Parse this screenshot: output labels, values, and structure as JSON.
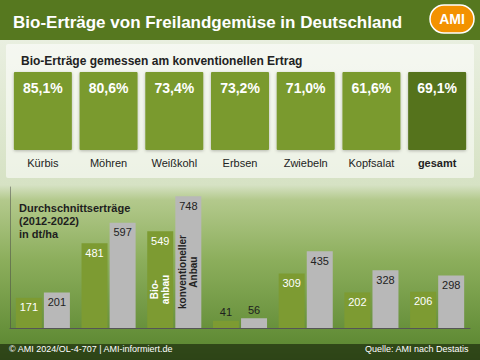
{
  "title": "Bio-Erträge von Freilandgemüse in Deutschland",
  "logo": "AMI",
  "chart_data": [
    {
      "type": "tiles",
      "title": "Bio-Erträge gemessen am konventionellen Ertrag",
      "categories": [
        "Kürbis",
        "Möhren",
        "Weißkohl",
        "Erbsen",
        "Zwiebeln",
        "Kopfsalat",
        "gesamt"
      ],
      "values": [
        85.1,
        80.6,
        73.4,
        73.2,
        71.0,
        61.6,
        69.1
      ],
      "value_labels": [
        "85,1%",
        "80,6%",
        "73,4%",
        "73,2%",
        "71,0%",
        "61,6%",
        "69,1%"
      ],
      "colors": [
        "#7a9a2e",
        "#7a9a2e",
        "#7a9a2e",
        "#7a9a2e",
        "#7a9a2e",
        "#7a9a2e",
        "#55731c"
      ],
      "data_labels": true
    },
    {
      "type": "bar",
      "title": "Durchschnittserträge\n(2012-2022)\nin dt/ha",
      "categories": [
        "Kürbis",
        "Möhren",
        "Weißkohl",
        "Erbsen",
        "Zwiebeln",
        "Kopfsalat",
        "gesamt"
      ],
      "series": [
        {
          "name": "Bio-\nanbau",
          "color": "#7d9b32",
          "values": [
            171,
            481,
            549,
            41,
            309,
            202,
            206
          ]
        },
        {
          "name": "konventioneller\nAnbau",
          "color": "#b8b8b8",
          "values": [
            201,
            597,
            748,
            56,
            435,
            328,
            298
          ]
        }
      ],
      "ylim": [
        0,
        800
      ],
      "tick_labels": false,
      "grid": false,
      "data_labels": true
    }
  ],
  "footer": {
    "left": "© AMI 2024/OL-4-707 | AMI-informiert.de",
    "right": "Quelle: AMI nach Destatis"
  }
}
